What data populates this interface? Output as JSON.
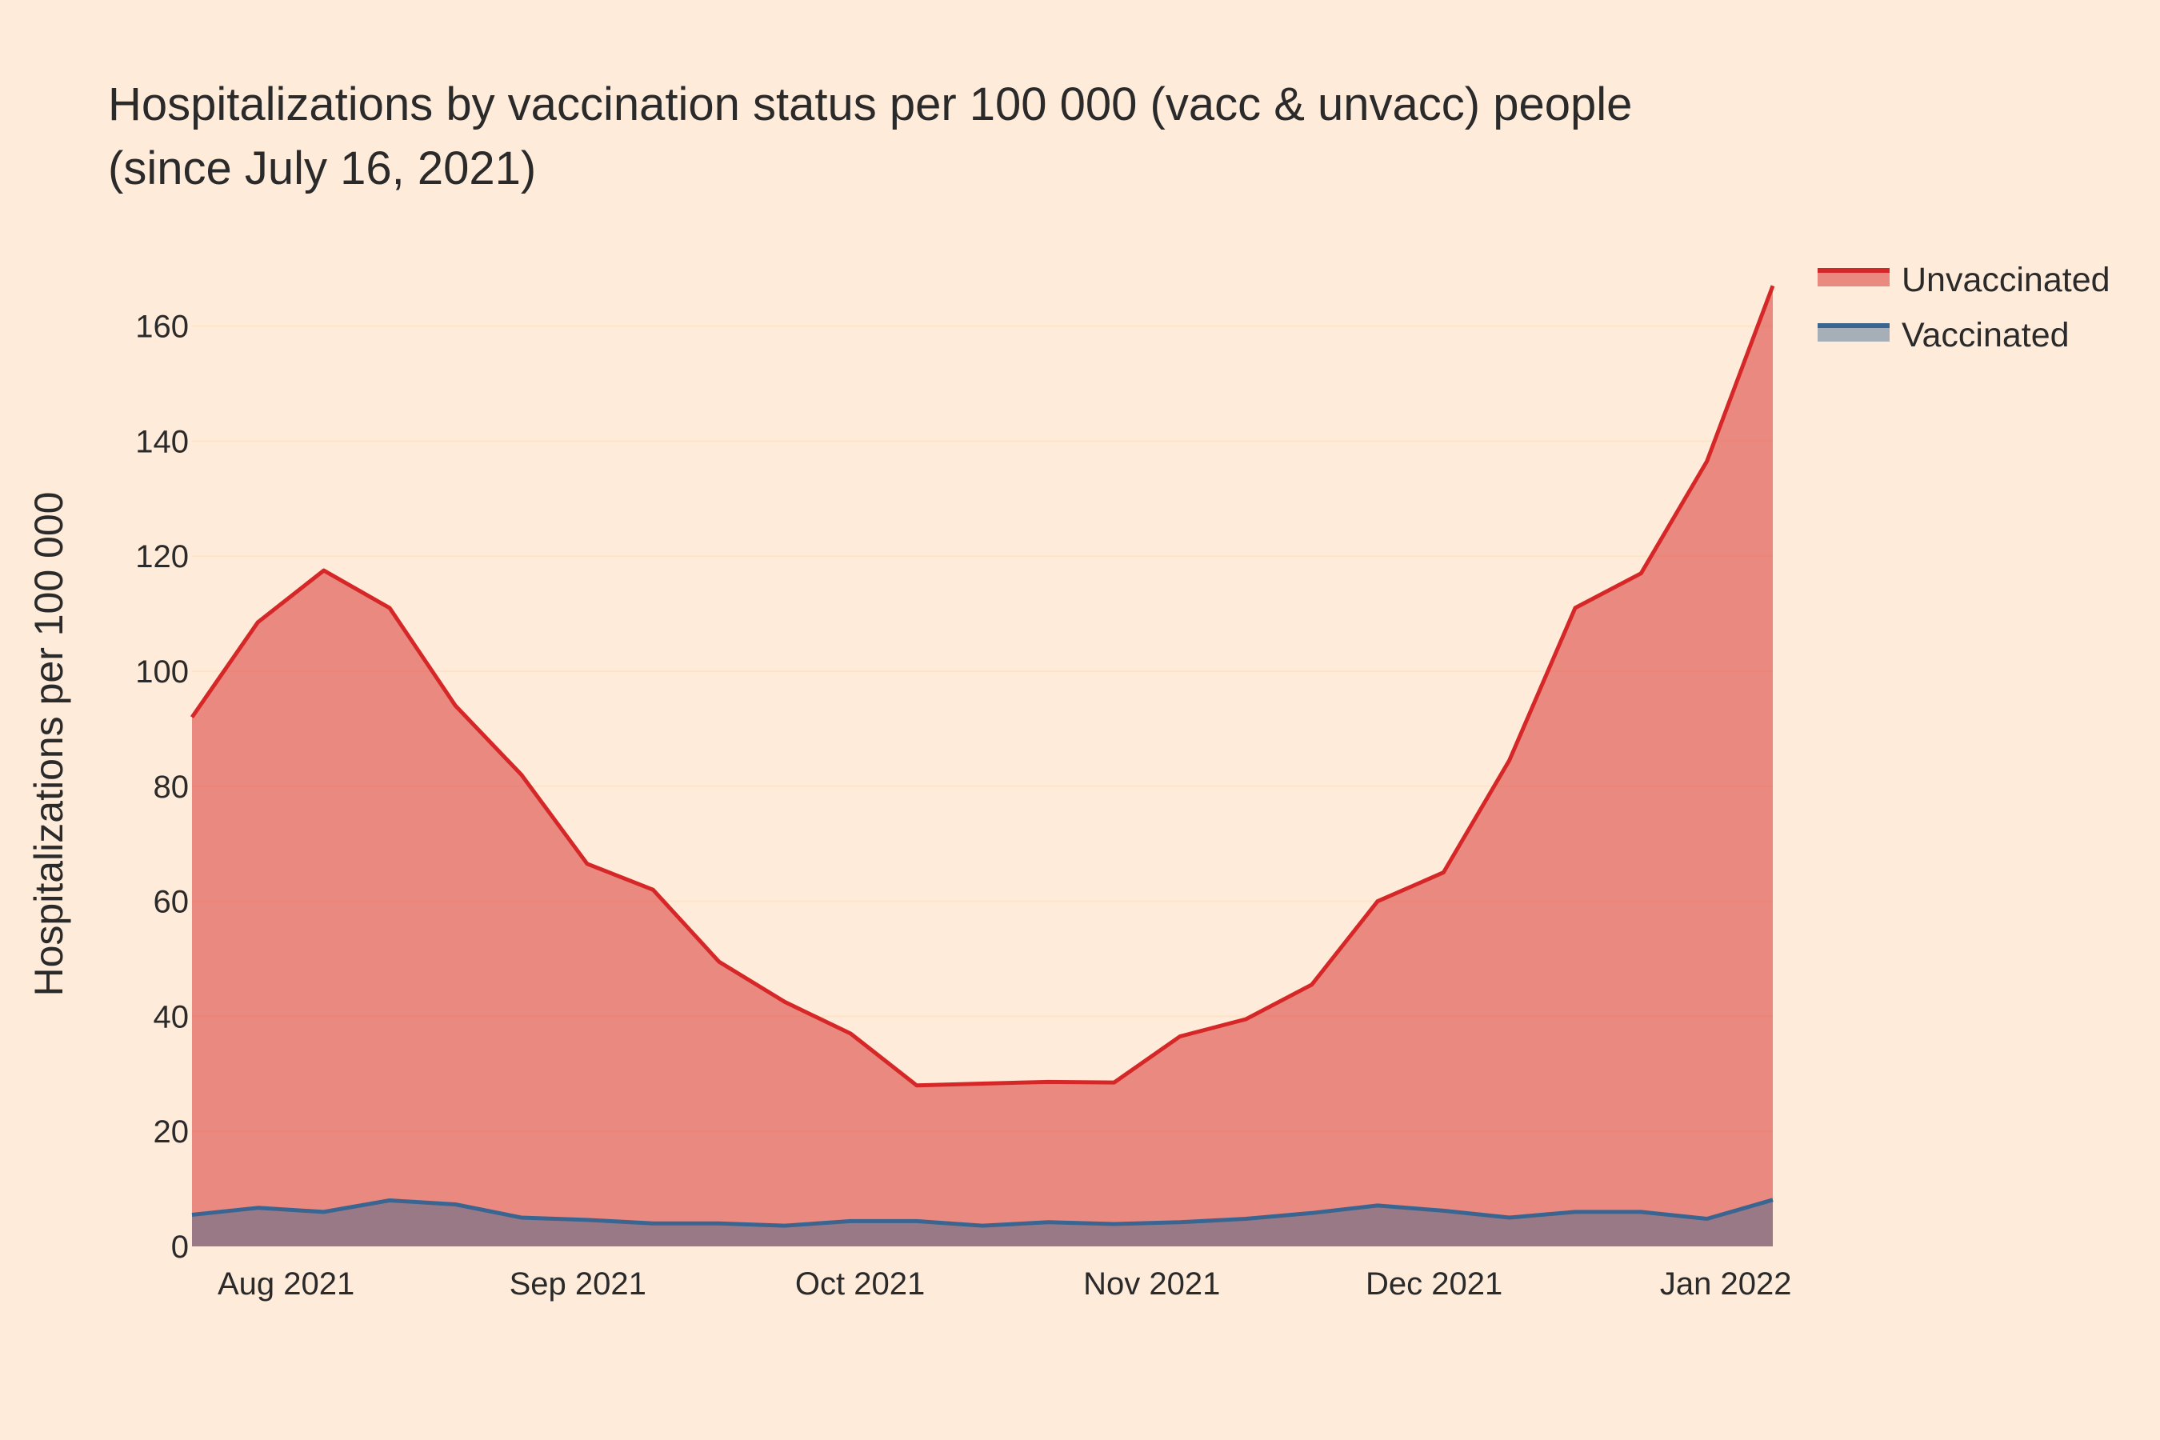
{
  "chart_data": {
    "type": "area",
    "title_lines": [
      "Hospitalizations by vaccination status per 100 000 (vacc & unvacc) people",
      "(since July 16, 2021)"
    ],
    "xlabel": "",
    "ylabel": "Hospitalizations per 100 000",
    "ylim": [
      0,
      168
    ],
    "yticks": [
      0,
      20,
      40,
      60,
      80,
      100,
      120,
      140,
      160
    ],
    "xlim": [
      "2021-07-22",
      "2022-01-06"
    ],
    "xticks": [
      {
        "label": "Aug 2021",
        "date": "2021-08-01"
      },
      {
        "label": "Sep 2021",
        "date": "2021-09-01"
      },
      {
        "label": "Oct 2021",
        "date": "2021-10-01"
      },
      {
        "label": "Nov 2021",
        "date": "2021-11-01"
      },
      {
        "label": "Dec 2021",
        "date": "2021-12-01"
      },
      {
        "label": "Jan 2022",
        "date": "2022-01-01"
      }
    ],
    "grid": true,
    "legend_position": "top-right",
    "x": [
      "2021-07-22",
      "2021-07-29",
      "2021-08-05",
      "2021-08-12",
      "2021-08-19",
      "2021-08-26",
      "2021-09-02",
      "2021-09-09",
      "2021-09-16",
      "2021-09-23",
      "2021-09-30",
      "2021-10-07",
      "2021-10-14",
      "2021-10-21",
      "2021-10-28",
      "2021-11-04",
      "2021-11-11",
      "2021-11-18",
      "2021-11-25",
      "2021-12-02",
      "2021-12-09",
      "2021-12-16",
      "2021-12-23",
      "2021-12-30",
      "2022-01-06"
    ],
    "series": [
      {
        "name": "Unvaccinated",
        "color": "#d62728",
        "fill": "rgba(214,39,40,0.5)",
        "values": [
          92,
          108.5,
          117.5,
          111,
          94,
          82,
          66.5,
          62,
          49.5,
          42.5,
          37,
          28,
          28.3,
          28.6,
          28.5,
          36.5,
          39.5,
          45.5,
          60,
          65,
          84.5,
          111,
          117,
          136.5,
          167
        ]
      },
      {
        "name": "Vaccinated",
        "color": "#3a6591",
        "fill": "rgba(58,101,145,0.45)",
        "values": [
          5.5,
          6.7,
          6,
          8,
          7.3,
          5,
          4.6,
          4,
          4,
          3.6,
          4.4,
          4.4,
          3.6,
          4.2,
          3.9,
          4.2,
          4.8,
          5.8,
          7.1,
          6.2,
          5,
          6,
          6,
          4.8,
          8.1
        ]
      }
    ]
  }
}
